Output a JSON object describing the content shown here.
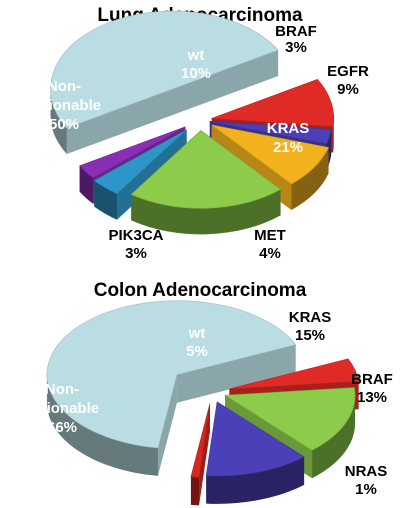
{
  "chart_data": [
    {
      "type": "pie",
      "title": "Lung Adenocarcinoma",
      "slices": [
        {
          "name": "wt",
          "value": 10,
          "label": "10%",
          "color": "#e02a26"
        },
        {
          "name": "BRAF",
          "value": 3,
          "label": "3%",
          "color": "#4b40b8"
        },
        {
          "name": "EGFR",
          "value": 9,
          "label": "9%",
          "color": "#f2b21e"
        },
        {
          "name": "KRAS",
          "value": 21,
          "label": "21%",
          "color": "#8ccc4a"
        },
        {
          "name": "MET",
          "value": 4,
          "label": "4%",
          "color": "#2e95c8"
        },
        {
          "name": "PIK3CA",
          "value": 3,
          "label": "3%",
          "color": "#8a2fb5"
        },
        {
          "name": "Non-actionable",
          "value": 50,
          "label": "50%",
          "color": "#b9dde2"
        }
      ]
    },
    {
      "type": "pie",
      "title": "Colon Adenocarcinoma",
      "slices": [
        {
          "name": "wt",
          "value": 5,
          "label": "5%",
          "color": "#e02a26"
        },
        {
          "name": "KRAS",
          "value": 15,
          "label": "15%",
          "color": "#8ccc4a"
        },
        {
          "name": "BRAF",
          "value": 13,
          "label": "13%",
          "color": "#4b40b8"
        },
        {
          "name": "NRAS",
          "value": 1,
          "label": "1%",
          "color": "#d5271f"
        },
        {
          "name": "Non-actionable",
          "value": 66,
          "label": "66%",
          "color": "#b9dde2"
        }
      ]
    }
  ]
}
